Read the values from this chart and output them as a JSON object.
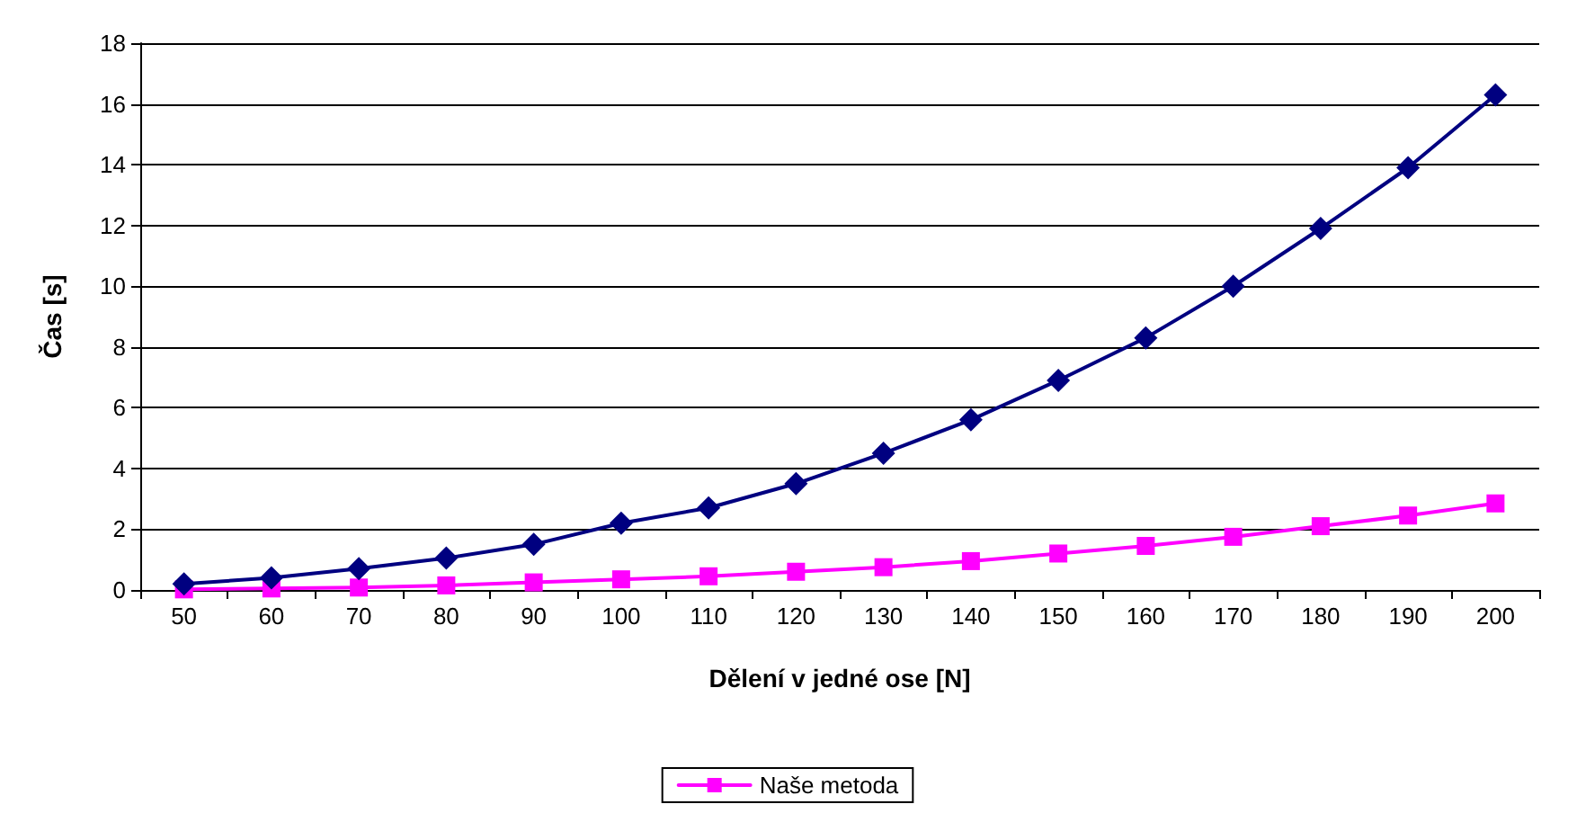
{
  "chart_data": {
    "type": "line",
    "xlabel": "Dělení v jedné ose [N]",
    "ylabel": "Čas [s]",
    "categories": [
      "50",
      "60",
      "70",
      "80",
      "90",
      "100",
      "110",
      "120",
      "130",
      "140",
      "150",
      "160",
      "170",
      "180",
      "190",
      "200"
    ],
    "series": [
      {
        "color": "#000080",
        "marker": "diamond",
        "values": [
          0.2,
          0.4,
          0.7,
          1.05,
          1.5,
          2.2,
          2.7,
          3.5,
          4.5,
          5.6,
          6.9,
          8.3,
          10.0,
          11.9,
          13.9,
          16.3
        ]
      },
      {
        "name": "Naše metoda",
        "color": "#ff00ff",
        "marker": "square",
        "values": [
          0.02,
          0.05,
          0.08,
          0.15,
          0.25,
          0.35,
          0.45,
          0.6,
          0.75,
          0.95,
          1.2,
          1.45,
          1.75,
          2.1,
          2.45,
          2.85
        ]
      }
    ],
    "ylim": [
      0,
      18
    ],
    "yticks": [
      0,
      2,
      4,
      6,
      8,
      10,
      12,
      14,
      16,
      18
    ],
    "grid": "y",
    "legend": "bottom",
    "line_style": "solid"
  }
}
